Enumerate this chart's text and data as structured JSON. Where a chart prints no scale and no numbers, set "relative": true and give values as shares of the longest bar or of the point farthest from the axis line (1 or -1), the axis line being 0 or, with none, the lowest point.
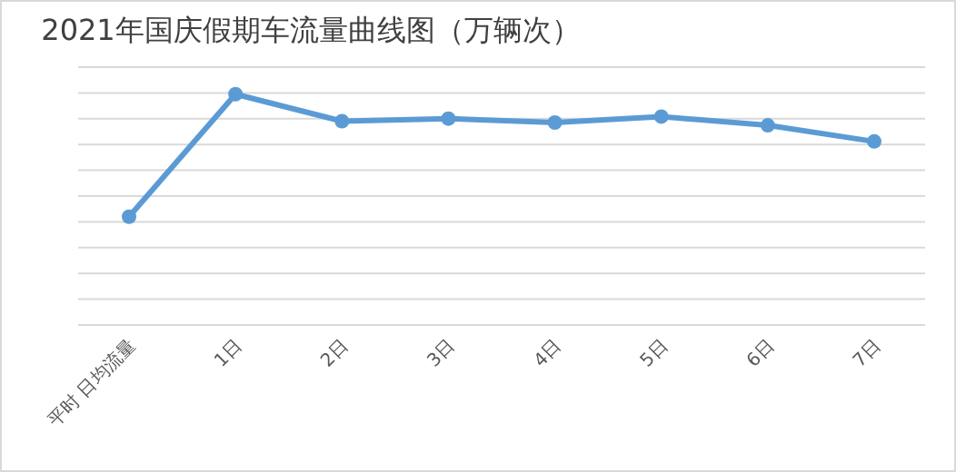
{
  "chart_data": {
    "type": "line",
    "title": "2021年国庆假期车流量曲线图（万辆次）",
    "relative": true,
    "grid": "y",
    "marker": "circle",
    "line_style": "solid",
    "categories": [
      "平时 日均流量",
      "1日",
      "2日",
      "3日",
      "4日",
      "5日",
      "6日",
      "7日"
    ],
    "series": [
      {
        "color": "#5b9bd5",
        "values": [
          0.469,
          1,
          0.883,
          0.894,
          0.877,
          0.903,
          0.865,
          0.795
        ]
      }
    ]
  }
}
